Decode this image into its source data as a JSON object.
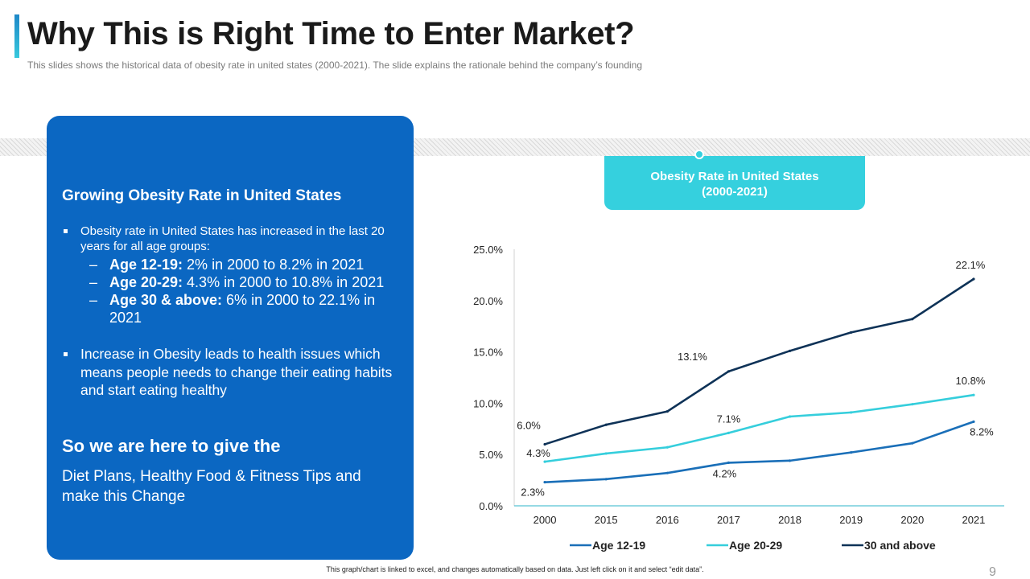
{
  "slide": {
    "title": "Why This is Right Time to Enter Market?",
    "subtitle": "This slides shows the historical data of obesity rate in united states (2000-2021).  The  slide explains the rationale  behind the company’s founding",
    "footer": "This graph/chart is linked to excel, and changes automatically based on data. Just left click on it and select “edit data”.",
    "page_number": "9"
  },
  "card": {
    "heading": "Growing  Obesity Rate in United States",
    "bullet1": "Obesity rate in United States has increased in the last 20 years for all age groups:",
    "sub": [
      {
        "label": "Age 12-19:",
        "text": " 2% in 2000 to 8.2% in 2021"
      },
      {
        "label": "Age 20-29:",
        "text": " 4.3% in 2000 to 10.8% in 2021"
      },
      {
        "label": "Age 30 & above:",
        "text": " 6% in 2000 to 22.1% in 2021"
      }
    ],
    "bullet2": "Increase in Obesity leads to health issues which means people needs to change their eating habits and start eating healthy",
    "cta": "So we are here to give the",
    "offer": "Diet Plans, Healthy Food & Fitness Tips and make  this Change"
  },
  "chart_badge": {
    "line1": "Obesity Rate in United States",
    "line2": "(2000-2021)"
  },
  "chart_data": {
    "type": "line",
    "title": "Obesity Rate in United States (2000-2021)",
    "categories": [
      "2000",
      "2015",
      "2016",
      "2017",
      "2018",
      "2019",
      "2020",
      "2021"
    ],
    "ylim": [
      0,
      25
    ],
    "yticks": [
      "0.0%",
      "5.0%",
      "10.0%",
      "15.0%",
      "20.0%",
      "25.0%"
    ],
    "series": [
      {
        "name": "Age 12-19",
        "color": "#1A6FB8",
        "values": [
          2.3,
          2.6,
          3.2,
          4.2,
          4.4,
          5.2,
          6.1,
          8.2
        ],
        "labels": [
          {
            "i": 0,
            "text": "2.3%"
          },
          {
            "i": 3,
            "text": "4.2%"
          },
          {
            "i": 7,
            "text": "8.2%"
          }
        ]
      },
      {
        "name": "Age 20-29",
        "color": "#35CEDC",
        "values": [
          4.3,
          5.1,
          5.7,
          7.1,
          8.7,
          9.1,
          9.9,
          10.8
        ],
        "labels": [
          {
            "i": 0,
            "text": "4.3%"
          },
          {
            "i": 3,
            "text": "7.1%"
          },
          {
            "i": 7,
            "text": "10.8%"
          }
        ]
      },
      {
        "name": "30 and above",
        "color": "#0E3257",
        "values": [
          6.0,
          7.9,
          9.2,
          13.1,
          15.1,
          16.9,
          18.2,
          22.1
        ],
        "labels": [
          {
            "i": 0,
            "text": "6.0%"
          },
          {
            "i": 3,
            "text": "13.1%"
          },
          {
            "i": 7,
            "text": "22.1%"
          }
        ]
      }
    ],
    "legend": "bottom"
  }
}
